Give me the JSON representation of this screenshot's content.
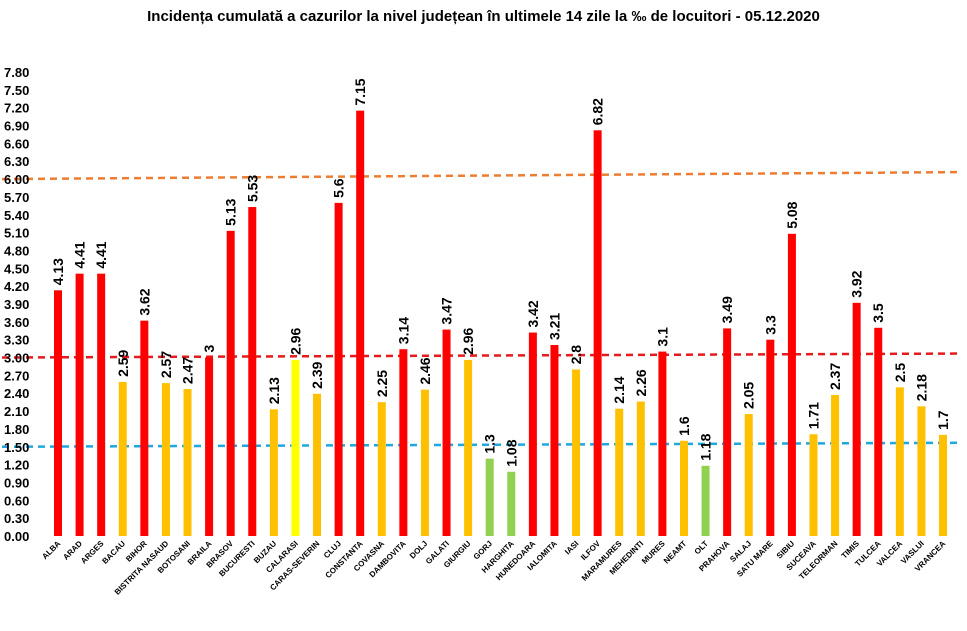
{
  "chart_data": {
    "type": "bar",
    "title": "Incidența cumulată a cazurilor la nivel județean în ultimele 14 zile   la ‰ de locuitori  - 05.12.2020",
    "xlabel": "",
    "ylabel": "",
    "ylim": [
      0,
      7.8
    ],
    "yticks": [
      "0.00",
      "0.30",
      "0.60",
      "0.90",
      "1.20",
      "1.50",
      "1.80",
      "2.10",
      "2.40",
      "2.70",
      "3.00",
      "3.30",
      "3.60",
      "3.90",
      "4.20",
      "4.50",
      "4.80",
      "5.10",
      "5.40",
      "5.70",
      "6.00",
      "6.30",
      "6.60",
      "6.90",
      "7.20",
      "7.50",
      "7.80"
    ],
    "grid": false,
    "legend": "none",
    "categories": [
      "ALBA",
      "ARAD",
      "ARGES",
      "BACAU",
      "BIHOR",
      "BISTRITA NASAUD",
      "BOTOSANI",
      "BRAILA",
      "BRASOV",
      "BUCURESTI",
      "BUZAU",
      "CALARASI",
      "CARAS-SEVERIN",
      "CLUJ",
      "CONSTANTA",
      "COVASNA",
      "DAMBOVITA",
      "DOLJ",
      "GALATI",
      "GIURGIU",
      "GORJ",
      "HARGHITA",
      "HUNEDOARA",
      "IALOMITA",
      "IASI",
      "ILFOV",
      "MARAMURES",
      "MEHEDINTI",
      "MURES",
      "NEAMT",
      "OLT",
      "PRAHOVA",
      "SALAJ",
      "SATU MARE",
      "SIBIU",
      "SUCEAVA",
      "TELEORMAN",
      "TIMIS",
      "TULCEA",
      "VALCEA",
      "VASLUI",
      "VRANCEA"
    ],
    "values": [
      4.13,
      4.41,
      4.41,
      2.59,
      3.62,
      2.57,
      2.47,
      3,
      5.13,
      5.53,
      2.13,
      2.96,
      2.39,
      5.6,
      7.15,
      2.25,
      3.14,
      2.46,
      3.47,
      2.96,
      1.3,
      1.08,
      3.42,
      3.21,
      2.8,
      6.82,
      2.14,
      2.26,
      3.1,
      1.6,
      1.18,
      3.49,
      2.05,
      3.3,
      5.08,
      1.71,
      2.37,
      3.92,
      3.5,
      2.5,
      2.18,
      1.7
    ],
    "value_labels": [
      "4.13",
      "4.41",
      "4.41",
      "2.59",
      "3.62",
      "2.57",
      "2.47",
      "3",
      "5.13",
      "5.53",
      "2.13",
      "2.96",
      "2.39",
      "5.6",
      "7.15",
      "2.25",
      "3.14",
      "2.46",
      "3.47",
      "2.96",
      "1.3",
      "1.08",
      "3.42",
      "3.21",
      "2.8",
      "6.82",
      "2.14",
      "2.26",
      "3.1",
      "1.6",
      "1.18",
      "3.49",
      "2.05",
      "3.3",
      "5.08",
      "1.71",
      "2.37",
      "3.92",
      "3.5",
      "2.5",
      "2.18",
      "1.7"
    ],
    "bar_colors": [
      "#ff0000",
      "#ff0000",
      "#ff0000",
      "#ffc000",
      "#ff0000",
      "#ffc000",
      "#ffc000",
      "#ff0000",
      "#ff0000",
      "#ff0000",
      "#ffc000",
      "#ffff00",
      "#ffc000",
      "#ff0000",
      "#ff0000",
      "#ffc000",
      "#ff0000",
      "#ffc000",
      "#ff0000",
      "#ffc000",
      "#92d050",
      "#92d050",
      "#ff0000",
      "#ff0000",
      "#ffc000",
      "#ff0000",
      "#ffc000",
      "#ffc000",
      "#ff0000",
      "#ffc000",
      "#92d050",
      "#ff0000",
      "#ffc000",
      "#ff0000",
      "#ff0000",
      "#ffc000",
      "#ffc000",
      "#ff0000",
      "#ff0000",
      "#ffc000",
      "#ffc000",
      "#ffc000"
    ],
    "threshold_lines": [
      {
        "value": 6.0,
        "color": "#ed7d31",
        "style": "dashed"
      },
      {
        "value": 3.0,
        "color": "#e41a1c",
        "style": "dashed"
      },
      {
        "value": 1.5,
        "color": "#1fa7e0",
        "style": "dashed"
      }
    ]
  }
}
